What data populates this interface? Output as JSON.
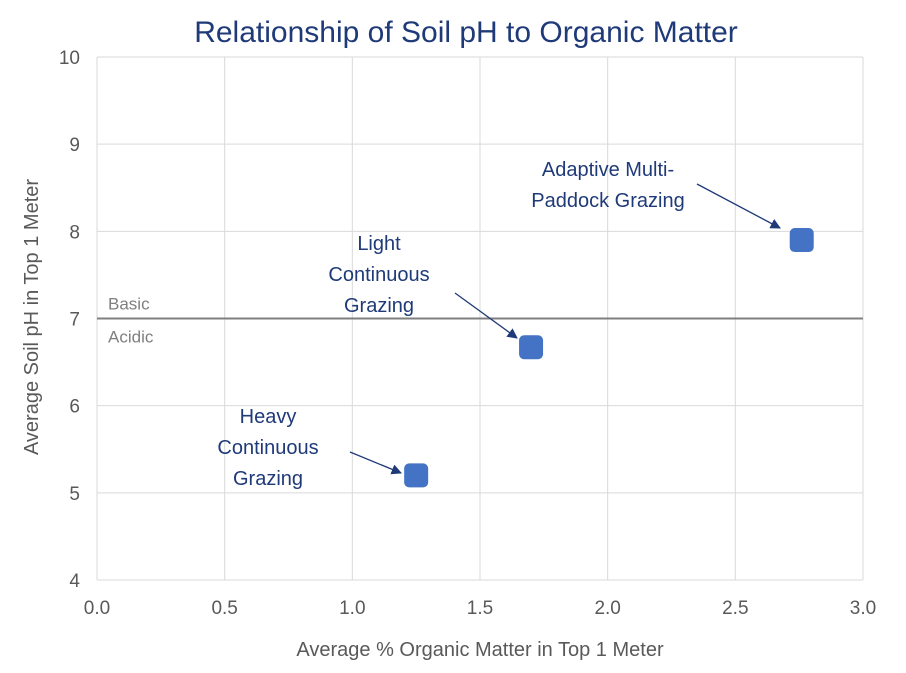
{
  "chart_data": {
    "type": "scatter",
    "title": "Relationship of Soil pH to Organic Matter",
    "xlabel": "Average % Organic Matter in Top 1 Meter",
    "ylabel": "Average Soil pH in Top 1 Meter",
    "xlim": [
      0.0,
      3.0
    ],
    "ylim": [
      4,
      10
    ],
    "xticks": [
      "0.0",
      "0.5",
      "1.0",
      "1.5",
      "2.0",
      "2.5",
      "3.0"
    ],
    "yticks": [
      "4",
      "5",
      "6",
      "7",
      "8",
      "9",
      "10"
    ],
    "grid": true,
    "points": [
      {
        "x": 1.25,
        "y": 5.2,
        "label_lines": [
          "Heavy",
          "Continuous",
          "Grazing"
        ]
      },
      {
        "x": 1.7,
        "y": 6.67,
        "label_lines": [
          "Light",
          "Continuous",
          "Grazing"
        ]
      },
      {
        "x": 2.76,
        "y": 7.9,
        "label_lines": [
          "Adaptive Multi-",
          "Paddock Grazing"
        ]
      }
    ],
    "reference_line": {
      "y": 7,
      "label_above": "Basic",
      "label_below": "Acidic"
    }
  }
}
